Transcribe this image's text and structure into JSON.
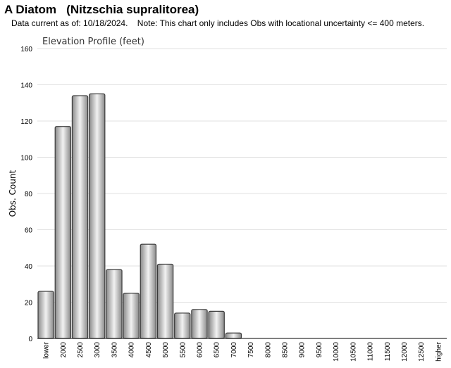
{
  "header": {
    "title": "A Diatom   (Nitzschia supralitorea)",
    "note": "Data current as of: 10/18/2024.    Note: This chart only includes Obs with locational uncertainty <= 400 meters."
  },
  "chart_data": {
    "type": "bar",
    "title": "Elevation Profile (feet)",
    "xlabel": "",
    "ylabel": "Obs. Count",
    "ylim": [
      0,
      160
    ],
    "yticks": [
      0,
      20,
      40,
      60,
      80,
      100,
      120,
      140,
      160
    ],
    "grid": true,
    "categories": [
      "lower",
      "2000",
      "2500",
      "3000",
      "3500",
      "4000",
      "4500",
      "5000",
      "5500",
      "6000",
      "6500",
      "7000",
      "7500",
      "8000",
      "8500",
      "9000",
      "9500",
      "10000",
      "10500",
      "11000",
      "11500",
      "12000",
      "12500",
      "higher"
    ],
    "values": [
      26,
      117,
      134,
      135,
      38,
      25,
      52,
      41,
      14,
      16,
      15,
      3,
      0,
      0,
      0,
      0,
      0,
      0,
      0,
      0,
      0,
      0,
      0,
      0
    ],
    "colors": {
      "bar_fill_edge": "#8a8a8a",
      "bar_fill_center": "#f2f2f2",
      "bar_stroke": "#3a3a3a",
      "grid": "#e0e0e0"
    }
  }
}
